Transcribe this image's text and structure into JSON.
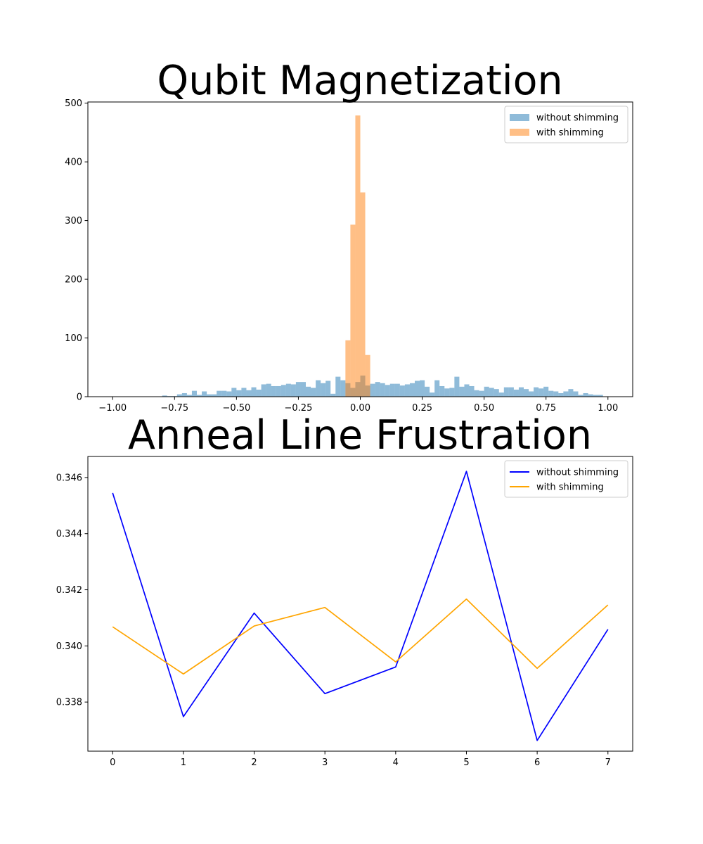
{
  "chart_data": [
    {
      "type": "histogram",
      "title": "Qubit Magnetization",
      "xlabel": "",
      "ylabel": "",
      "xlim": [
        -1.1,
        1.1
      ],
      "ylim": [
        0,
        502
      ],
      "xticks": [
        -1.0,
        -0.75,
        -0.5,
        -0.25,
        0.0,
        0.25,
        0.5,
        0.75,
        1.0
      ],
      "xtick_labels": [
        "−1.00",
        "−0.75",
        "−0.50",
        "−0.25",
        "0.00",
        "0.25",
        "0.50",
        "0.75",
        "1.00"
      ],
      "yticks": [
        0,
        100,
        200,
        300,
        400,
        500
      ],
      "ytick_labels": [
        "0",
        "100",
        "200",
        "300",
        "400",
        "500"
      ],
      "legend_position": "top-right",
      "bin_range": [
        -1.0,
        1.0
      ],
      "bin_count": 100,
      "series": [
        {
          "name": "without shimming",
          "color": "#1f77b4",
          "alpha": 0.5,
          "counts": [
            0,
            0,
            0,
            0,
            0,
            0,
            0,
            0,
            0,
            0,
            2,
            1,
            1,
            4,
            6,
            3,
            10,
            3,
            9,
            4,
            4,
            10,
            10,
            9,
            15,
            11,
            15,
            11,
            16,
            12,
            21,
            22,
            18,
            18,
            20,
            22,
            21,
            25,
            25,
            17,
            15,
            28,
            23,
            27,
            5,
            34,
            28,
            23,
            15,
            25,
            36,
            19,
            22,
            25,
            23,
            20,
            22,
            22,
            19,
            21,
            23,
            27,
            28,
            17,
            7,
            28,
            18,
            14,
            15,
            34,
            17,
            21,
            18,
            11,
            10,
            17,
            15,
            13,
            7,
            16,
            16,
            12,
            16,
            13,
            9,
            16,
            14,
            17,
            10,
            9,
            6,
            9,
            13,
            9,
            3,
            6,
            4,
            3,
            3,
            0
          ]
        },
        {
          "name": "with shimming",
          "color": "#ff7f0e",
          "alpha": 0.5,
          "bins": [
            -0.06,
            -0.04,
            -0.02,
            0.0,
            0.02,
            0.04
          ],
          "values": [
            96,
            293,
            479,
            348,
            71
          ]
        }
      ]
    },
    {
      "type": "line",
      "title": "Anneal Line Frustration",
      "xlabel": "",
      "ylabel": "",
      "x": [
        0,
        1,
        2,
        3,
        4,
        5,
        6,
        7
      ],
      "xlim": [
        -0.35,
        7.35
      ],
      "ylim": [
        0.33625,
        0.34675
      ],
      "xticks": [
        0,
        1,
        2,
        3,
        4,
        5,
        6,
        7
      ],
      "xtick_labels": [
        "0",
        "1",
        "2",
        "3",
        "4",
        "5",
        "6",
        "7"
      ],
      "yticks": [
        0.338,
        0.34,
        0.342,
        0.344,
        0.346
      ],
      "ytick_labels": [
        "0.338",
        "0.340",
        "0.342",
        "0.344",
        "0.346"
      ],
      "legend_position": "top-right",
      "series": [
        {
          "name": "without shimming",
          "color": "#0000ff",
          "values": [
            0.34545,
            0.33748,
            0.34117,
            0.3383,
            0.33925,
            0.34622,
            0.33663,
            0.34059
          ]
        },
        {
          "name": "with shimming",
          "color": "#ffa500",
          "values": [
            0.34068,
            0.339,
            0.34071,
            0.34137,
            0.33943,
            0.34167,
            0.3392,
            0.34146
          ]
        }
      ]
    }
  ]
}
